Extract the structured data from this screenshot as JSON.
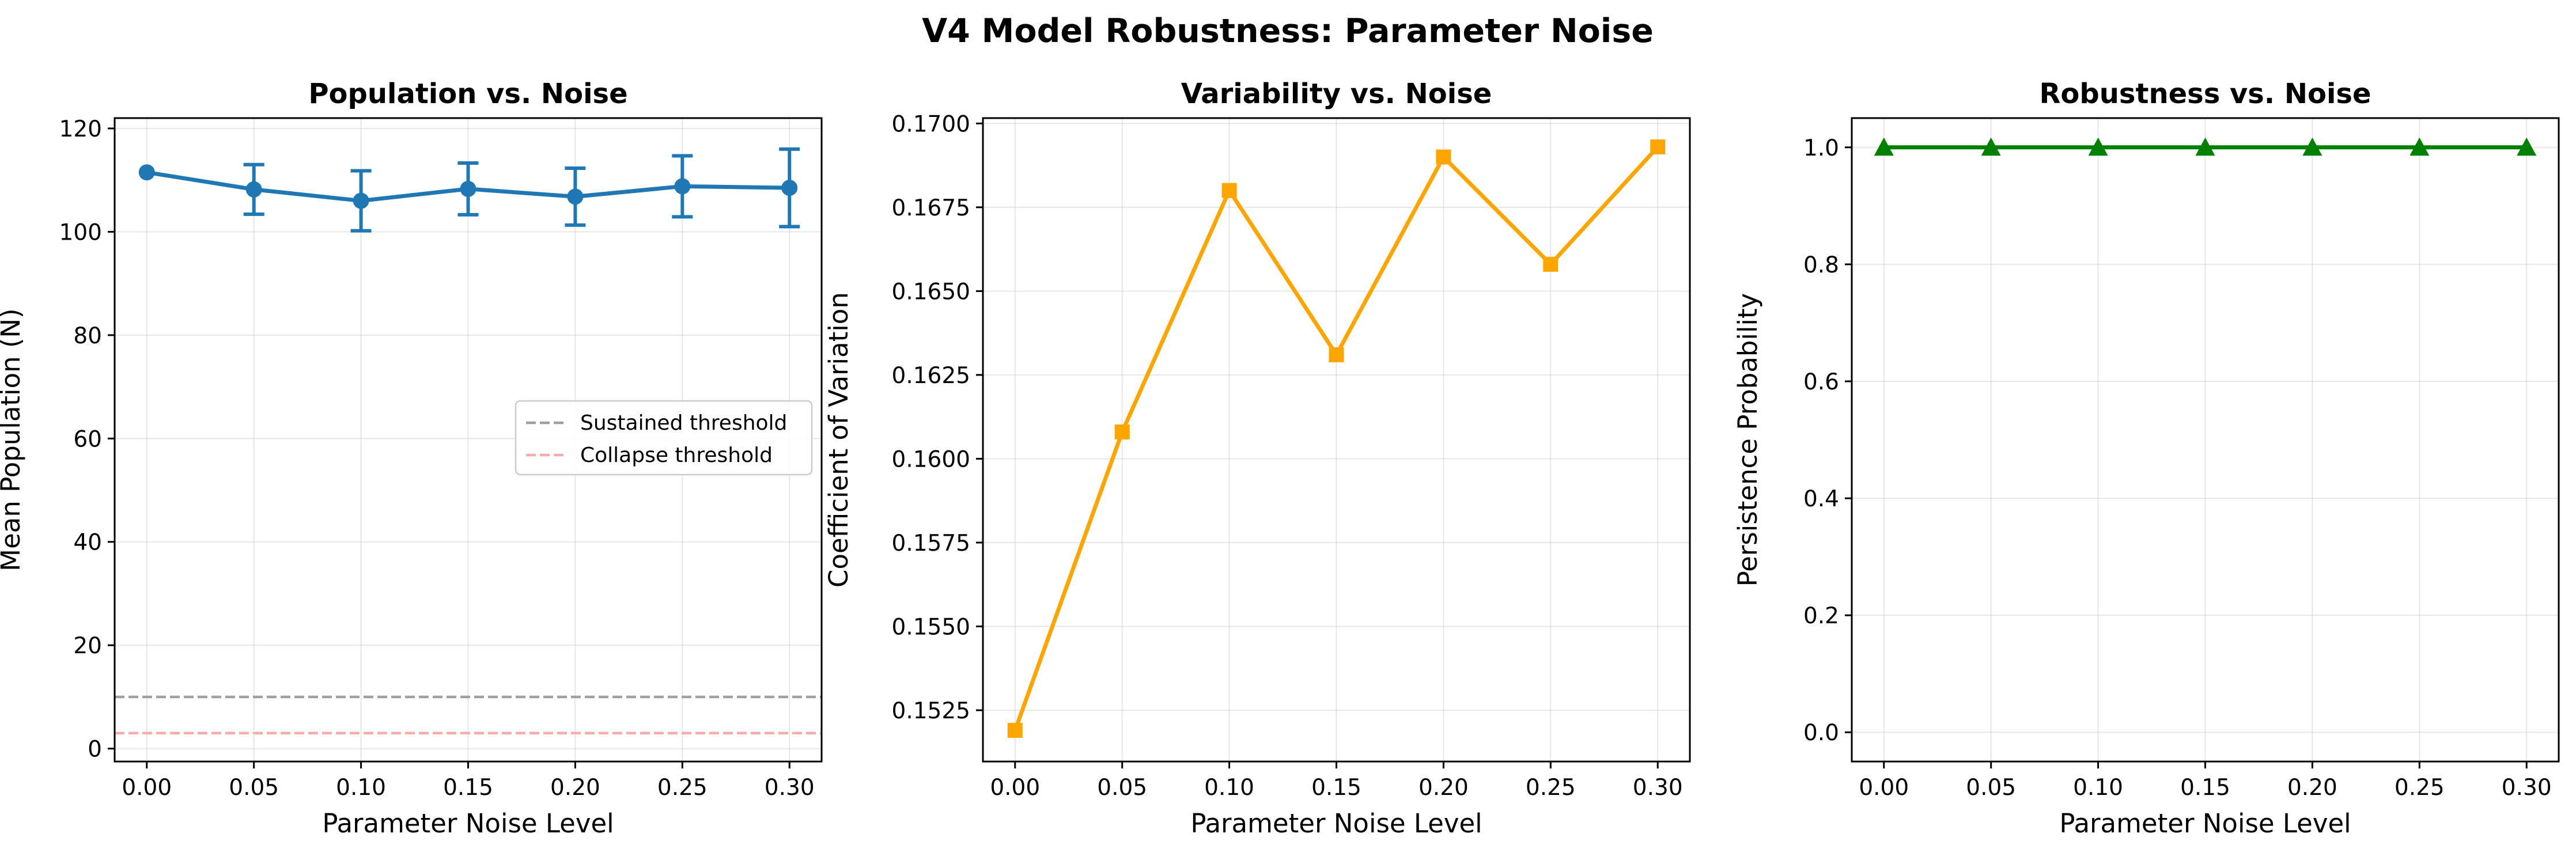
{
  "figure_title": "V4 Model Robustness: Parameter Noise",
  "chart_data": [
    {
      "type": "line",
      "title": "Population vs. Noise",
      "xlabel": "Parameter Noise Level",
      "ylabel": "Mean Population (N)",
      "x": [
        0.0,
        0.05,
        0.1,
        0.15,
        0.2,
        0.25,
        0.3
      ],
      "xlim": [
        -0.015,
        0.315
      ],
      "ylim": [
        -2.5,
        122
      ],
      "xticks": [
        "0.00",
        "0.05",
        "0.10",
        "0.15",
        "0.20",
        "0.25",
        "0.30"
      ],
      "yticks": [
        "0",
        "20",
        "40",
        "60",
        "80",
        "100",
        "120"
      ],
      "grid": true,
      "legend_placement": "center-right",
      "series": [
        {
          "values": [
            111.5,
            108.2,
            106.0,
            108.3,
            106.8,
            108.8,
            108.5
          ],
          "error": [
            0,
            4.8,
            5.8,
            5.0,
            5.5,
            5.9,
            7.5
          ],
          "color": "#1f77b4",
          "marker": "circle"
        }
      ],
      "reference_lines": [
        {
          "name": "Sustained threshold",
          "y": 10,
          "color": "#a0a0a0"
        },
        {
          "name": "Collapse threshold",
          "y": 3,
          "color": "#ffaaaa"
        }
      ]
    },
    {
      "type": "line",
      "title": "Variability vs. Noise",
      "xlabel": "Parameter Noise Level",
      "ylabel": "Coefficient of Variation",
      "x": [
        0.0,
        0.05,
        0.1,
        0.15,
        0.2,
        0.25,
        0.3
      ],
      "xlim": [
        -0.015,
        0.315
      ],
      "ylim": [
        0.15097,
        0.17016
      ],
      "xticks": [
        "0.00",
        "0.05",
        "0.10",
        "0.15",
        "0.20",
        "0.25",
        "0.30"
      ],
      "yticks": [
        "0.1525",
        "0.1550",
        "0.1575",
        "0.1600",
        "0.1625",
        "0.1650",
        "0.1675",
        "0.1700"
      ],
      "grid": true,
      "series": [
        {
          "values": [
            0.1519,
            0.1608,
            0.168,
            0.1631,
            0.169,
            0.1658,
            0.1693
          ],
          "color": "#ffa500",
          "marker": "square"
        }
      ]
    },
    {
      "type": "line",
      "title": "Robustness vs. Noise",
      "xlabel": "Parameter Noise Level",
      "ylabel": "Persistence Probability",
      "x": [
        0.0,
        0.05,
        0.1,
        0.15,
        0.2,
        0.25,
        0.3
      ],
      "xlim": [
        -0.015,
        0.315
      ],
      "ylim": [
        -0.05,
        1.05
      ],
      "xticks": [
        "0.00",
        "0.05",
        "0.10",
        "0.15",
        "0.20",
        "0.25",
        "0.30"
      ],
      "yticks": [
        "0.0",
        "0.2",
        "0.4",
        "0.6",
        "0.8",
        "1.0"
      ],
      "grid": true,
      "series": [
        {
          "values": [
            1.0,
            1.0,
            1.0,
            1.0,
            1.0,
            1.0,
            1.0
          ],
          "color": "#008000",
          "marker": "triangle"
        }
      ]
    }
  ]
}
